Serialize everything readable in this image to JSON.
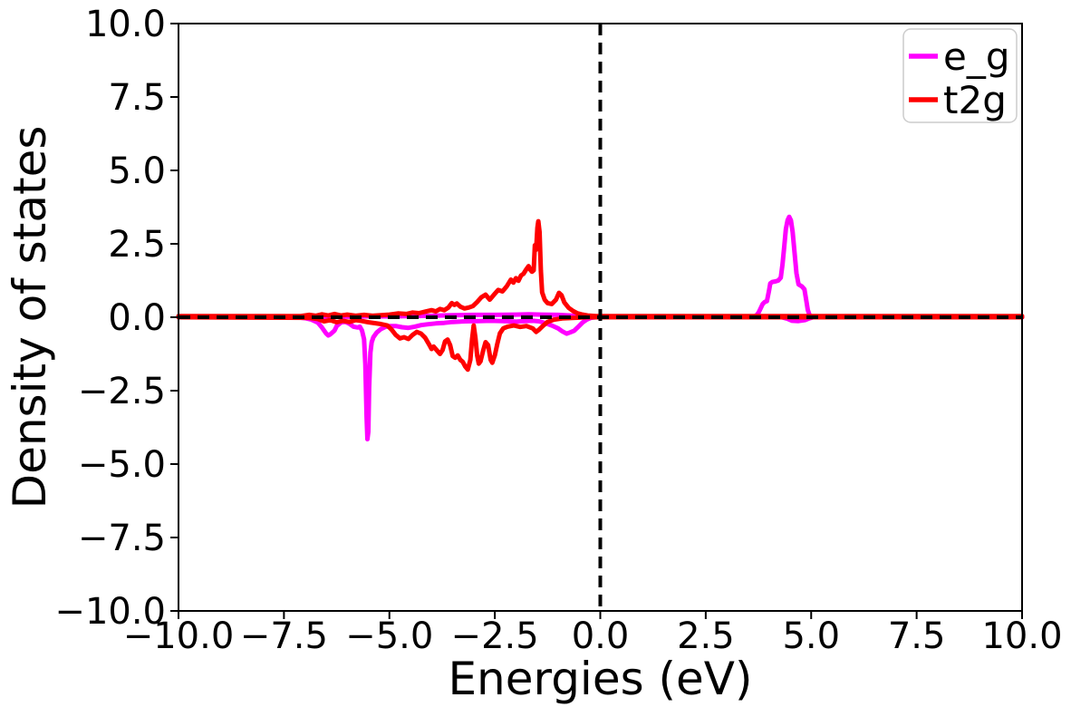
{
  "chart_data": {
    "type": "line",
    "title": "",
    "xlabel": "Energies (eV)",
    "ylabel": "Density of states",
    "xlim": [
      -10,
      10
    ],
    "ylim": [
      -10,
      10
    ],
    "grid": false,
    "background": "#ffffff",
    "axis_color": "#000000",
    "xtick_values": [
      -10,
      -7.5,
      -5,
      -2.5,
      0,
      2.5,
      5,
      7.5,
      10
    ],
    "xtick_labels": [
      "−10.0",
      "−7.5",
      "−5.0",
      "−2.5",
      "0.0",
      "2.5",
      "5.0",
      "7.5",
      "10.0"
    ],
    "ytick_values": [
      10,
      7.5,
      5,
      2.5,
      0,
      -2.5,
      -5,
      -7.5,
      -10
    ],
    "ytick_labels": [
      "10.0",
      "7.5",
      "5.0",
      "2.5",
      "0.0",
      "−2.5",
      "−5.0",
      "−7.5",
      "−10.0"
    ],
    "legend_position": "upper right",
    "legend": [
      {
        "label": "e_g",
        "color": "#ff00ff"
      },
      {
        "label": "t2g",
        "color": "#ff0000"
      }
    ],
    "reference_lines": [
      {
        "axis": "y",
        "value": 0,
        "style": "dashed",
        "color": "#000000"
      },
      {
        "axis": "x",
        "value": 0,
        "style": "dashed",
        "color": "#000000"
      }
    ],
    "series": [
      {
        "name": "e_g",
        "branch": "spin-up",
        "color": "#ff00ff",
        "points": [
          [
            -10,
            0
          ],
          [
            -7,
            0
          ],
          [
            -6.5,
            0.02
          ],
          [
            -6,
            0.02
          ],
          [
            -5.5,
            0.03
          ],
          [
            -5,
            0.03
          ],
          [
            -4.5,
            0.04
          ],
          [
            -4,
            0.05
          ],
          [
            -3.5,
            0.07
          ],
          [
            -3,
            0.08
          ],
          [
            -2.5,
            0.08
          ],
          [
            -2,
            0.09
          ],
          [
            -1.7,
            0.1
          ],
          [
            -1.4,
            0.09
          ],
          [
            -1,
            0.08
          ],
          [
            -0.7,
            0.06
          ],
          [
            -0.4,
            0.03
          ],
          [
            -0.2,
            0.01
          ],
          [
            0,
            0
          ],
          [
            3.6,
            0
          ],
          [
            3.7,
            0.06
          ],
          [
            3.75,
            0.15
          ],
          [
            3.8,
            0.3
          ],
          [
            3.85,
            0.45
          ],
          [
            3.9,
            0.52
          ],
          [
            3.95,
            0.55
          ],
          [
            4,
            0.9
          ],
          [
            4.03,
            1.15
          ],
          [
            4.08,
            1.2
          ],
          [
            4.15,
            1.22
          ],
          [
            4.22,
            1.25
          ],
          [
            4.28,
            1.35
          ],
          [
            4.32,
            1.8
          ],
          [
            4.36,
            2.4
          ],
          [
            4.4,
            3.0
          ],
          [
            4.44,
            3.3
          ],
          [
            4.48,
            3.42
          ],
          [
            4.52,
            3.3
          ],
          [
            4.56,
            2.9
          ],
          [
            4.6,
            2.3
          ],
          [
            4.65,
            1.5
          ],
          [
            4.7,
            1.12
          ],
          [
            4.78,
            1.05
          ],
          [
            4.84,
            0.95
          ],
          [
            4.88,
            0.6
          ],
          [
            4.92,
            0.25
          ],
          [
            4.96,
            0.08
          ],
          [
            5,
            0.02
          ],
          [
            5.1,
            0
          ],
          [
            10,
            0
          ]
        ]
      },
      {
        "name": "e_g",
        "branch": "spin-down",
        "color": "#ff00ff",
        "points": [
          [
            -10,
            0
          ],
          [
            -7.2,
            0
          ],
          [
            -7,
            -0.03
          ],
          [
            -6.85,
            -0.08
          ],
          [
            -6.7,
            -0.18
          ],
          [
            -6.6,
            -0.35
          ],
          [
            -6.5,
            -0.55
          ],
          [
            -6.45,
            -0.62
          ],
          [
            -6.4,
            -0.58
          ],
          [
            -6.3,
            -0.45
          ],
          [
            -6.25,
            -0.3
          ],
          [
            -6.15,
            -0.18
          ],
          [
            -6.05,
            -0.15
          ],
          [
            -5.95,
            -0.22
          ],
          [
            -5.85,
            -0.32
          ],
          [
            -5.75,
            -0.35
          ],
          [
            -5.7,
            -0.32
          ],
          [
            -5.65,
            -0.45
          ],
          [
            -5.6,
            -0.75
          ],
          [
            -5.57,
            -1.6
          ],
          [
            -5.54,
            -3.4
          ],
          [
            -5.52,
            -4.15
          ],
          [
            -5.5,
            -3.9
          ],
          [
            -5.48,
            -2.4
          ],
          [
            -5.45,
            -1.2
          ],
          [
            -5.42,
            -0.85
          ],
          [
            -5.38,
            -0.68
          ],
          [
            -5.3,
            -0.52
          ],
          [
            -5.2,
            -0.4
          ],
          [
            -5.1,
            -0.33
          ],
          [
            -5,
            -0.3
          ],
          [
            -4.85,
            -0.3
          ],
          [
            -4.7,
            -0.34
          ],
          [
            -4.55,
            -0.36
          ],
          [
            -4.4,
            -0.32
          ],
          [
            -4.25,
            -0.27
          ],
          [
            -4.1,
            -0.24
          ],
          [
            -3.9,
            -0.21
          ],
          [
            -3.7,
            -0.19
          ],
          [
            -3.5,
            -0.16
          ],
          [
            -3.2,
            -0.14
          ],
          [
            -2.9,
            -0.13
          ],
          [
            -2.6,
            -0.12
          ],
          [
            -2.3,
            -0.13
          ],
          [
            -2,
            -0.15
          ],
          [
            -1.8,
            -0.13
          ],
          [
            -1.6,
            -0.12
          ],
          [
            -1.45,
            -0.14
          ],
          [
            -1.3,
            -0.2
          ],
          [
            -1.15,
            -0.28
          ],
          [
            -1,
            -0.38
          ],
          [
            -0.9,
            -0.48
          ],
          [
            -0.8,
            -0.56
          ],
          [
            -0.72,
            -0.52
          ],
          [
            -0.62,
            -0.46
          ],
          [
            -0.52,
            -0.32
          ],
          [
            -0.42,
            -0.18
          ],
          [
            -0.32,
            -0.08
          ],
          [
            -0.22,
            -0.02
          ],
          [
            -0.1,
            0
          ],
          [
            4.3,
            0
          ],
          [
            4.45,
            -0.06
          ],
          [
            4.55,
            -0.12
          ],
          [
            4.7,
            -0.13
          ],
          [
            4.85,
            -0.1
          ],
          [
            4.95,
            -0.04
          ],
          [
            5.05,
            0
          ],
          [
            10,
            0
          ]
        ]
      },
      {
        "name": "t2g",
        "branch": "spin-up",
        "color": "#ff0000",
        "points": [
          [
            -10,
            0.04
          ],
          [
            -7.1,
            0.04
          ],
          [
            -6.9,
            0.08
          ],
          [
            -6.75,
            0.05
          ],
          [
            -6.6,
            0.1
          ],
          [
            -6.45,
            0.06
          ],
          [
            -6.3,
            0.11
          ],
          [
            -6.15,
            0.06
          ],
          [
            -6,
            0.09
          ],
          [
            -5.8,
            0.05
          ],
          [
            -5.6,
            0.08
          ],
          [
            -5.4,
            0.05
          ],
          [
            -5.2,
            0.07
          ],
          [
            -5,
            0.09
          ],
          [
            -4.8,
            0.13
          ],
          [
            -4.6,
            0.11
          ],
          [
            -4.45,
            0.16
          ],
          [
            -4.3,
            0.14
          ],
          [
            -4.15,
            0.19
          ],
          [
            -4,
            0.24
          ],
          [
            -3.9,
            0.2
          ],
          [
            -3.8,
            0.28
          ],
          [
            -3.7,
            0.24
          ],
          [
            -3.6,
            0.33
          ],
          [
            -3.52,
            0.48
          ],
          [
            -3.46,
            0.42
          ],
          [
            -3.4,
            0.47
          ],
          [
            -3.32,
            0.36
          ],
          [
            -3.22,
            0.3
          ],
          [
            -3.12,
            0.33
          ],
          [
            -3.02,
            0.38
          ],
          [
            -2.92,
            0.52
          ],
          [
            -2.82,
            0.68
          ],
          [
            -2.72,
            0.77
          ],
          [
            -2.62,
            0.6
          ],
          [
            -2.52,
            0.77
          ],
          [
            -2.42,
            0.93
          ],
          [
            -2.32,
            0.88
          ],
          [
            -2.22,
            1.05
          ],
          [
            -2.12,
            1.28
          ],
          [
            -2.06,
            1.18
          ],
          [
            -2,
            1.33
          ],
          [
            -1.94,
            1.24
          ],
          [
            -1.88,
            1.42
          ],
          [
            -1.82,
            1.48
          ],
          [
            -1.76,
            1.62
          ],
          [
            -1.7,
            1.74
          ],
          [
            -1.66,
            1.62
          ],
          [
            -1.62,
            1.55
          ],
          [
            -1.58,
            1.6
          ],
          [
            -1.55,
            2.45
          ],
          [
            -1.52,
            2.3
          ],
          [
            -1.49,
            3.05
          ],
          [
            -1.47,
            3.27
          ],
          [
            -1.44,
            2.9
          ],
          [
            -1.41,
            1.6
          ],
          [
            -1.38,
            0.85
          ],
          [
            -1.32,
            0.6
          ],
          [
            -1.25,
            0.48
          ],
          [
            -1.15,
            0.45
          ],
          [
            -1.05,
            0.6
          ],
          [
            -0.98,
            0.83
          ],
          [
            -0.92,
            0.75
          ],
          [
            -0.85,
            0.5
          ],
          [
            -0.75,
            0.32
          ],
          [
            -0.65,
            0.22
          ],
          [
            -0.55,
            0.14
          ],
          [
            -0.45,
            0.1
          ],
          [
            -0.3,
            0.06
          ],
          [
            -0.1,
            0.04
          ],
          [
            0,
            0.04
          ],
          [
            10,
            0.04
          ]
        ]
      },
      {
        "name": "t2g",
        "branch": "spin-down",
        "color": "#ff0000",
        "points": [
          [
            -10,
            0
          ],
          [
            -6.9,
            -0.02
          ],
          [
            -6.7,
            -0.06
          ],
          [
            -6.55,
            -0.14
          ],
          [
            -6.4,
            -0.1
          ],
          [
            -6.25,
            -0.17
          ],
          [
            -6.1,
            -0.12
          ],
          [
            -5.95,
            -0.16
          ],
          [
            -5.8,
            -0.1
          ],
          [
            -5.65,
            -0.13
          ],
          [
            -5.5,
            -0.17
          ],
          [
            -5.35,
            -0.2
          ],
          [
            -5.2,
            -0.23
          ],
          [
            -5.05,
            -0.28
          ],
          [
            -4.95,
            -0.42
          ],
          [
            -4.85,
            -0.6
          ],
          [
            -4.75,
            -0.72
          ],
          [
            -4.65,
            -0.68
          ],
          [
            -4.55,
            -0.74
          ],
          [
            -4.45,
            -0.6
          ],
          [
            -4.35,
            -0.5
          ],
          [
            -4.25,
            -0.56
          ],
          [
            -4.15,
            -0.7
          ],
          [
            -4.05,
            -0.95
          ],
          [
            -4,
            -1.08
          ],
          [
            -3.95,
            -1.0
          ],
          [
            -3.88,
            -1.12
          ],
          [
            -3.8,
            -1.25
          ],
          [
            -3.74,
            -1.12
          ],
          [
            -3.68,
            -0.82
          ],
          [
            -3.62,
            -0.76
          ],
          [
            -3.56,
            -0.95
          ],
          [
            -3.5,
            -1.32
          ],
          [
            -3.44,
            -1.38
          ],
          [
            -3.38,
            -1.3
          ],
          [
            -3.32,
            -1.45
          ],
          [
            -3.26,
            -1.52
          ],
          [
            -3.2,
            -1.68
          ],
          [
            -3.14,
            -1.78
          ],
          [
            -3.08,
            -1.45
          ],
          [
            -3.04,
            -0.75
          ],
          [
            -3,
            -0.28
          ],
          [
            -2.96,
            -0.7
          ],
          [
            -2.92,
            -1.3
          ],
          [
            -2.88,
            -1.58
          ],
          [
            -2.84,
            -1.5
          ],
          [
            -2.78,
            -1.15
          ],
          [
            -2.72,
            -0.85
          ],
          [
            -2.66,
            -0.95
          ],
          [
            -2.6,
            -1.45
          ],
          [
            -2.56,
            -1.55
          ],
          [
            -2.5,
            -1.3
          ],
          [
            -2.44,
            -0.9
          ],
          [
            -2.38,
            -0.55
          ],
          [
            -2.3,
            -0.38
          ],
          [
            -2.2,
            -0.32
          ],
          [
            -2.05,
            -0.28
          ],
          [
            -1.9,
            -0.33
          ],
          [
            -1.75,
            -0.3
          ],
          [
            -1.6,
            -0.38
          ],
          [
            -1.52,
            -0.5
          ],
          [
            -1.45,
            -0.42
          ],
          [
            -1.35,
            -0.28
          ],
          [
            -1.25,
            -0.16
          ],
          [
            -1.1,
            -0.08
          ],
          [
            -0.9,
            -0.04
          ],
          [
            -0.6,
            -0.02
          ],
          [
            -0.3,
            0
          ],
          [
            0,
            0
          ],
          [
            10,
            0
          ]
        ]
      }
    ]
  }
}
